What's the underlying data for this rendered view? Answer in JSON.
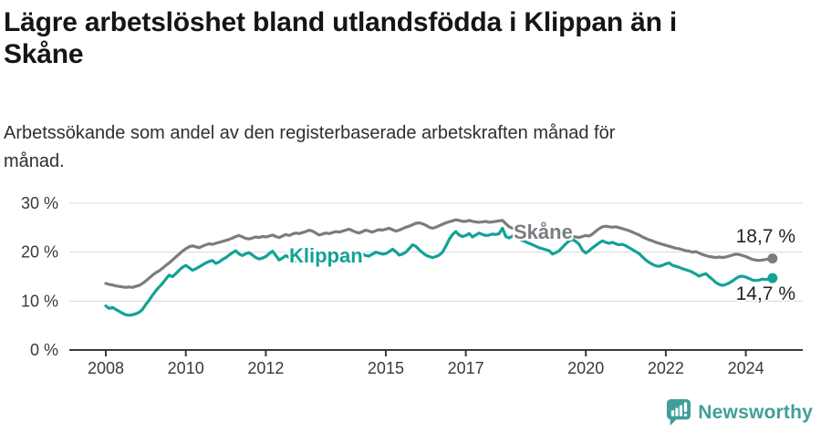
{
  "header": {
    "title": "Lägre arbetslöshet bland utlandsfödda i Klippan än i Skåne",
    "subtitle": "Arbetssökande som andel av den registerbaserade arbetskraften månad för månad."
  },
  "footer": {
    "brand": "Newsworthy",
    "brand_color": "#3f9f99"
  },
  "chart_data": {
    "type": "line",
    "title": "Lägre arbetslöshet bland utlandsfödda i Klippan än i Skåne",
    "subtitle": "Arbetssökande som andel av den registerbaserade arbetskraften månad för månad.",
    "unit": "%",
    "grid": "horizontal",
    "legend": "inline-labels",
    "ylim": [
      0,
      30
    ],
    "x_ticks": [
      {
        "value": 2008,
        "label": "2008"
      },
      {
        "value": 2010,
        "label": "2010"
      },
      {
        "value": 2012,
        "label": "2012"
      },
      {
        "value": 2015,
        "label": "2015"
      },
      {
        "value": 2017,
        "label": "2017"
      },
      {
        "value": 2020,
        "label": "2020"
      },
      {
        "value": 2022,
        "label": "2022"
      },
      {
        "value": 2024,
        "label": "2024"
      }
    ],
    "y_ticks": [
      {
        "value": 0,
        "label": "0 %"
      },
      {
        "value": 10,
        "label": "10 %"
      },
      {
        "value": 20,
        "label": "20 %"
      },
      {
        "value": 30,
        "label": "30 %"
      }
    ],
    "x_start_year": 2008,
    "x_step_months": 1,
    "series": [
      {
        "name": "Skåne",
        "color": "#7b7c81",
        "end_label": "18,7 %",
        "end_value": 18.7,
        "start": "2008-01",
        "end": "2024-09",
        "values": [
          13.6,
          13.4,
          13.3,
          13.1,
          13.0,
          12.9,
          12.8,
          12.9,
          12.8,
          13.0,
          13.2,
          13.6,
          14.1,
          14.7,
          15.3,
          15.8,
          16.2,
          16.7,
          17.3,
          17.8,
          18.4,
          19.0,
          19.6,
          20.2,
          20.7,
          21.1,
          21.3,
          21.1,
          20.9,
          21.2,
          21.5,
          21.7,
          21.6,
          21.8,
          22.0,
          22.2,
          22.4,
          22.6,
          22.9,
          23.2,
          23.4,
          23.1,
          22.8,
          22.7,
          22.9,
          23.1,
          23.0,
          23.2,
          23.1,
          23.3,
          23.5,
          23.2,
          23.0,
          23.3,
          23.6,
          23.4,
          23.7,
          23.9,
          23.8,
          24.0,
          24.2,
          24.5,
          24.3,
          23.9,
          23.5,
          23.7,
          23.9,
          23.8,
          24.0,
          24.2,
          24.1,
          24.3,
          24.5,
          24.7,
          24.4,
          24.1,
          23.9,
          24.2,
          24.5,
          24.3,
          24.1,
          24.4,
          24.6,
          24.5,
          24.7,
          24.9,
          24.6,
          24.3,
          24.5,
          24.8,
          25.1,
          25.3,
          25.6,
          25.9,
          26.0,
          25.8,
          25.5,
          25.1,
          24.9,
          25.1,
          25.4,
          25.7,
          26.0,
          26.2,
          26.4,
          26.6,
          26.5,
          26.3,
          26.3,
          26.5,
          26.3,
          26.2,
          26.1,
          26.2,
          26.3,
          26.1,
          26.2,
          26.3,
          26.4,
          26.5,
          25.8,
          25.2,
          24.9,
          24.8,
          24.6,
          24.5,
          24.4,
          24.3,
          24.2,
          24.0,
          23.9,
          23.8,
          23.7,
          23.6,
          23.5,
          23.4,
          23.5,
          23.4,
          23.3,
          23.4,
          23.2,
          23.1,
          23.0,
          23.2,
          23.4,
          23.3,
          23.7,
          24.3,
          24.8,
          25.2,
          25.3,
          25.2,
          25.1,
          25.2,
          25.0,
          24.8,
          24.6,
          24.4,
          24.1,
          23.8,
          23.5,
          23.1,
          22.8,
          22.5,
          22.3,
          22.0,
          21.8,
          21.6,
          21.4,
          21.2,
          21.0,
          20.8,
          20.7,
          20.5,
          20.3,
          20.2,
          20.0,
          20.1,
          19.8,
          19.5,
          19.3,
          19.1,
          19.0,
          18.9,
          19.0,
          18.9,
          19.0,
          19.2,
          19.4,
          19.6,
          19.5,
          19.3,
          19.1,
          18.8,
          18.5,
          18.4,
          18.3,
          18.4,
          18.5,
          18.6,
          18.7
        ]
      },
      {
        "name": "Klippan",
        "color": "#12a296",
        "end_label": "14,7 %",
        "end_value": 14.7,
        "start": "2008-01",
        "end": "2024-09",
        "values": [
          9.0,
          8.5,
          8.7,
          8.3,
          7.9,
          7.5,
          7.2,
          7.1,
          7.2,
          7.4,
          7.7,
          8.3,
          9.3,
          10.2,
          11.2,
          12.1,
          12.9,
          13.6,
          14.5,
          15.3,
          15.0,
          15.6,
          16.3,
          16.9,
          17.3,
          16.8,
          16.3,
          16.6,
          17.0,
          17.4,
          17.8,
          18.1,
          18.3,
          17.7,
          18.0,
          18.5,
          18.9,
          19.4,
          19.9,
          20.3,
          19.6,
          19.3,
          19.7,
          19.9,
          19.4,
          18.9,
          18.6,
          18.8,
          19.1,
          19.7,
          20.2,
          19.3,
          18.4,
          18.8,
          19.3,
          18.9,
          18.5,
          18.2,
          18.5,
          18.8,
          19.0,
          19.2,
          19.5,
          19.8,
          19.5,
          19.1,
          18.9,
          18.7,
          18.6,
          18.8,
          19.0,
          18.9,
          19.1,
          19.3,
          19.4,
          19.2,
          19.5,
          19.6,
          19.3,
          19.2,
          19.6,
          20.0,
          19.8,
          19.6,
          19.7,
          20.1,
          20.6,
          20.1,
          19.4,
          19.6,
          20.0,
          20.7,
          21.5,
          21.2,
          20.5,
          19.9,
          19.4,
          19.1,
          18.9,
          19.1,
          19.4,
          20.0,
          21.2,
          22.6,
          23.6,
          24.2,
          23.5,
          23.2,
          23.4,
          23.8,
          23.1,
          23.5,
          23.9,
          23.6,
          23.4,
          23.5,
          23.7,
          23.6,
          23.8,
          24.9,
          23.2,
          22.9,
          23.3,
          23.0,
          22.7,
          22.4,
          22.1,
          21.8,
          21.5,
          21.2,
          20.9,
          20.7,
          20.5,
          20.3,
          19.6,
          19.9,
          20.3,
          21.0,
          21.7,
          22.3,
          22.6,
          22.2,
          21.6,
          20.4,
          19.8,
          20.3,
          20.9,
          21.4,
          21.9,
          22.3,
          22.0,
          21.8,
          22.0,
          21.7,
          21.5,
          21.6,
          21.3,
          20.9,
          20.5,
          20.1,
          19.7,
          19.0,
          18.4,
          17.9,
          17.5,
          17.2,
          17.1,
          17.3,
          17.6,
          17.8,
          17.3,
          17.1,
          16.9,
          16.6,
          16.4,
          16.2,
          15.9,
          15.5,
          15.1,
          15.4,
          15.6,
          15.0,
          14.4,
          13.8,
          13.4,
          13.2,
          13.4,
          13.7,
          14.1,
          14.6,
          15.0,
          15.1,
          14.9,
          14.6,
          14.3,
          14.2,
          14.3,
          14.5,
          14.4,
          14.5,
          14.7
        ]
      }
    ]
  }
}
